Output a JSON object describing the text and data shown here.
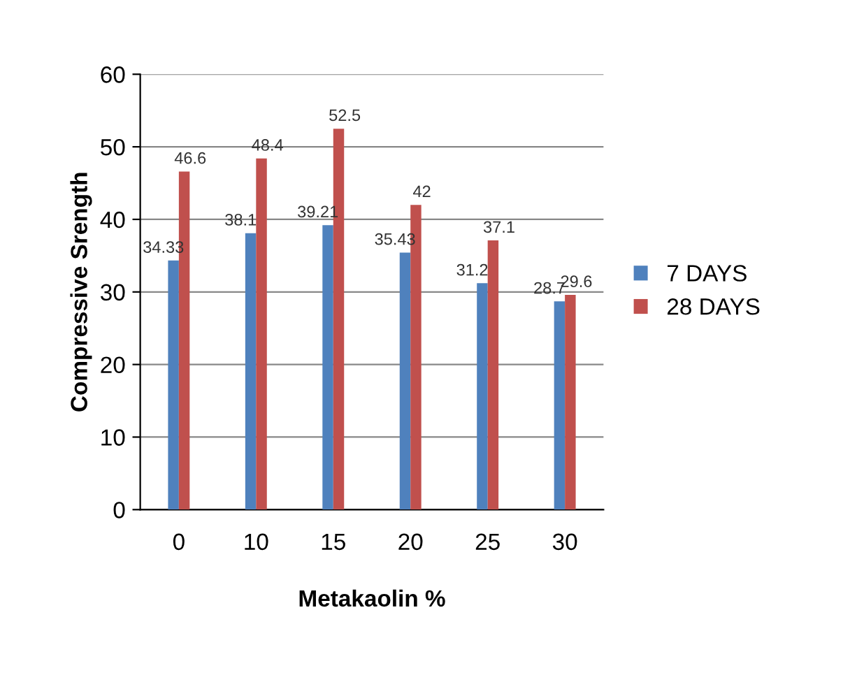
{
  "chart_data": {
    "type": "bar",
    "xlabel": "Metakaolin %",
    "ylabel": "Compressive Srength",
    "categories": [
      "0",
      "10",
      "15",
      "20",
      "25",
      "30"
    ],
    "series": [
      {
        "name": "7 DAYS",
        "color": "#4f81bd",
        "values": [
          34.33,
          38.1,
          39.21,
          35.43,
          31.2,
          28.7
        ]
      },
      {
        "name": "28 DAYS",
        "color": "#c0504d",
        "values": [
          46.6,
          48.4,
          52.5,
          42,
          37.1,
          29.6
        ]
      }
    ],
    "ylim": [
      0,
      60
    ],
    "yticks": [
      0,
      10,
      20,
      30,
      40,
      50,
      60
    ],
    "grid": "y",
    "legend": "right",
    "data_labels": true
  }
}
